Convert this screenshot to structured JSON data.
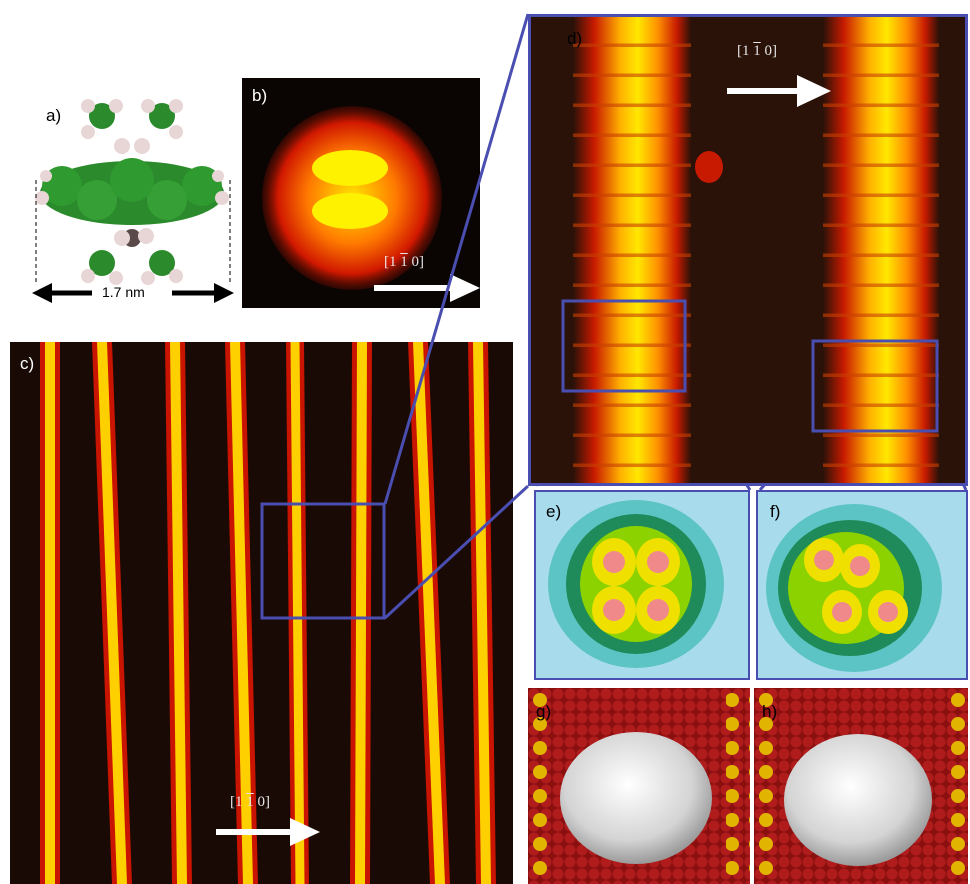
{
  "panels": {
    "a": {
      "label": "a)",
      "scale_text": "1.7 nm"
    },
    "b": {
      "label": "b)",
      "direction": [
        "[1 ",
        "1",
        " 0]"
      ]
    },
    "c": {
      "label": "c)",
      "direction": [
        "[1 ",
        "1",
        " 0]"
      ]
    },
    "d": {
      "label": "d)",
      "direction": [
        "[1 ",
        "1",
        " 0]"
      ]
    },
    "e": {
      "label": "e)"
    },
    "f": {
      "label": "f)"
    },
    "g": {
      "label": "g)"
    },
    "h": {
      "label": "h)"
    }
  },
  "colors": {
    "stm_dark": "#1a0a05",
    "stm_hot": "#ffe600",
    "stm_mid": "#ff3b00",
    "frame": "#4a4eb0",
    "carbon": "#2b8a2b",
    "hydrogen": "#e8d6d6",
    "substrate_red": "#a41818",
    "substrate_gold": "#e0b400"
  }
}
